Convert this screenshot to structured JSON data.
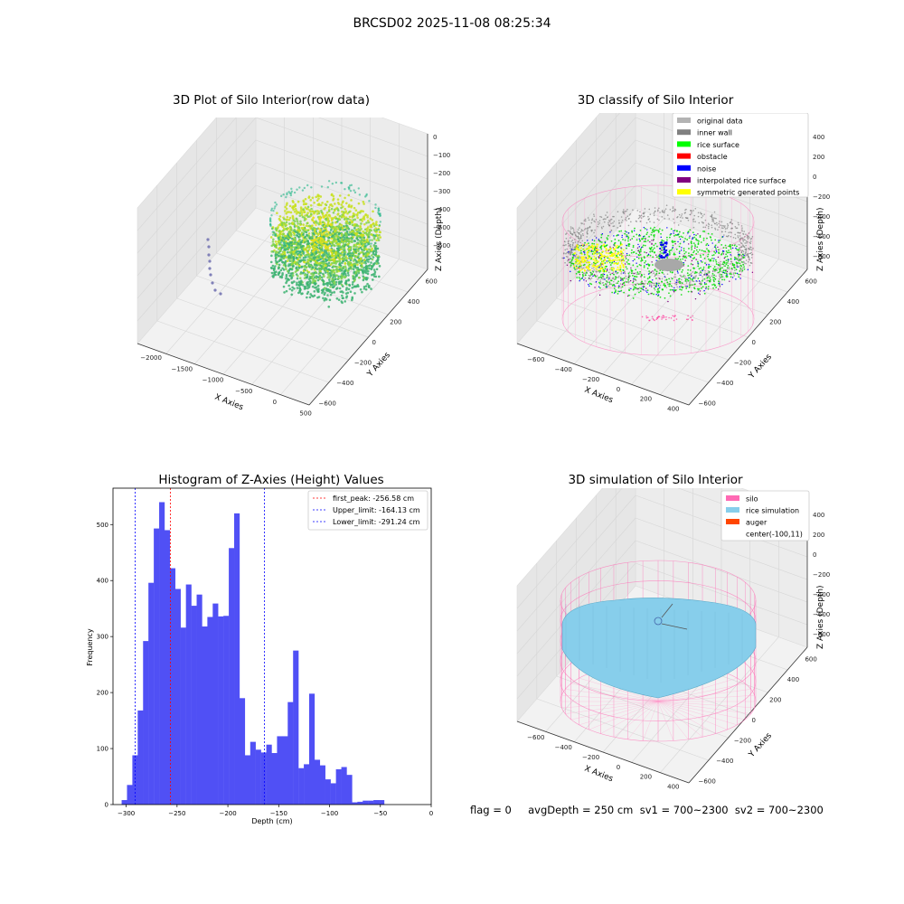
{
  "figure": {
    "suptitle": "BRCSD02 2025-11-08 08:25:34",
    "footer": "flag = 0     avgDepth = 250 cm  sv1 = 700~2300  sv2 = 700~2300"
  },
  "panel_raw": {
    "title": "3D Plot of Silo Interior(row data)",
    "xlabel": "X Axies",
    "ylabel": "Y Axies",
    "zlabel": "Z Axies (Depth)",
    "xticks": [
      "−2000",
      "−1500",
      "−1000",
      "−500",
      "0",
      "500"
    ],
    "yticks": [
      "−600",
      "−400",
      "−200",
      "0",
      "200",
      "400",
      "600"
    ],
    "zticks": [
      "0",
      "−100",
      "−200",
      "−300",
      "−400",
      "−500",
      "−600"
    ]
  },
  "panel_classify": {
    "title": "3D classify of Silo Interior",
    "xlabel": "X Axies",
    "ylabel": "Y Axies",
    "zlabel": "Z Axies (Depth)",
    "xticks": [
      "−600",
      "−400",
      "−200",
      "0",
      "200",
      "400"
    ],
    "yticks": [
      "−600",
      "−400",
      "−200",
      "0",
      "200",
      "400",
      "600"
    ],
    "zticks": [
      "400",
      "200",
      "0",
      "−200",
      "−400",
      "−600",
      "−800"
    ],
    "legend": [
      {
        "label": "original data",
        "color": "#b3b3b3"
      },
      {
        "label": "inner wall",
        "color": "#808080"
      },
      {
        "label": "rice surface",
        "color": "#00ff00"
      },
      {
        "label": "obstacle",
        "color": "#ff0000"
      },
      {
        "label": "noise",
        "color": "#0000ff"
      },
      {
        "label": "interpolated rice surface",
        "color": "#800080"
      },
      {
        "label": "symmetric generated points",
        "color": "#ffff00"
      }
    ]
  },
  "panel_sim": {
    "title": "3D simulation of Silo Interior",
    "xlabel": "X Axies",
    "ylabel": "Y Axies",
    "zlabel": "Z Axies (Depth)",
    "xticks": [
      "−600",
      "−400",
      "−200",
      "0",
      "200",
      "400"
    ],
    "yticks": [
      "−600",
      "−400",
      "−200",
      "0",
      "200",
      "400",
      "600"
    ],
    "zticks": [
      "400",
      "200",
      "0",
      "−200",
      "−400",
      "−600",
      "−800"
    ],
    "legend": [
      {
        "label": "silo",
        "color": "#ff69b4"
      },
      {
        "label": "rice simulation",
        "color": "#87ceeb"
      },
      {
        "label": "auger",
        "color": "#ff4500"
      },
      {
        "label": "center(-100,11)",
        "color": ""
      }
    ]
  },
  "chart_data": [
    {
      "type": "scatter3d",
      "title": "3D Plot of Silo Interior(row data)",
      "xlabel": "X Axies",
      "ylabel": "Y Axies",
      "zlabel": "Z Axies (Depth)",
      "xlim": [
        -2200,
        550
      ],
      "ylim": [
        -650,
        650
      ],
      "zlim": [
        -650,
        0
      ]
    },
    {
      "type": "scatter3d",
      "title": "3D classify of Silo Interior",
      "xlabel": "X Axies",
      "ylabel": "Y Axies",
      "zlabel": "Z Axies (Depth)",
      "series": [
        {
          "name": "original data"
        },
        {
          "name": "inner wall"
        },
        {
          "name": "rice surface"
        },
        {
          "name": "obstacle"
        },
        {
          "name": "noise"
        },
        {
          "name": "interpolated rice surface"
        },
        {
          "name": "symmetric generated points"
        }
      ]
    },
    {
      "type": "bar",
      "title": "Histogram of Z-Axies (Height) Values",
      "xlabel": "Depth (cm)",
      "ylabel": "Frequency",
      "xlim": [
        -313,
        0
      ],
      "ylim": [
        0,
        565
      ],
      "xticks": [
        -300,
        -250,
        -200,
        -150,
        -100,
        -50,
        0
      ],
      "yticks": [
        0,
        100,
        200,
        300,
        400,
        500
      ],
      "bin_width": 5.27,
      "bin_start": -304.5,
      "values": [
        8,
        35,
        88,
        168,
        292,
        396,
        493,
        540,
        490,
        422,
        385,
        316,
        393,
        355,
        375,
        318,
        335,
        359,
        336,
        337,
        458,
        520,
        190,
        88,
        112,
        98,
        93,
        107,
        92,
        122,
        122,
        183,
        275,
        65,
        72,
        198,
        80,
        70,
        45,
        38,
        63,
        67,
        53,
        4,
        5,
        7,
        7,
        8,
        8
      ],
      "vlines": [
        {
          "label": "first_peak: -256.58 cm",
          "x": -256.58,
          "color": "#ff0000"
        },
        {
          "label": "Upper_limit: -164.13 cm",
          "x": -164.13,
          "color": "#0000ff"
        },
        {
          "label": "Lower_limit: -291.24 cm",
          "x": -291.24,
          "color": "#0000ff"
        }
      ],
      "bar_color": "#5050f5"
    },
    {
      "type": "surface3d",
      "title": "3D simulation of Silo Interior",
      "xlabel": "X Axies",
      "ylabel": "Y Axies",
      "zlabel": "Z Axies (Depth)",
      "series": [
        {
          "name": "silo"
        },
        {
          "name": "rice simulation"
        },
        {
          "name": "auger"
        }
      ]
    }
  ]
}
